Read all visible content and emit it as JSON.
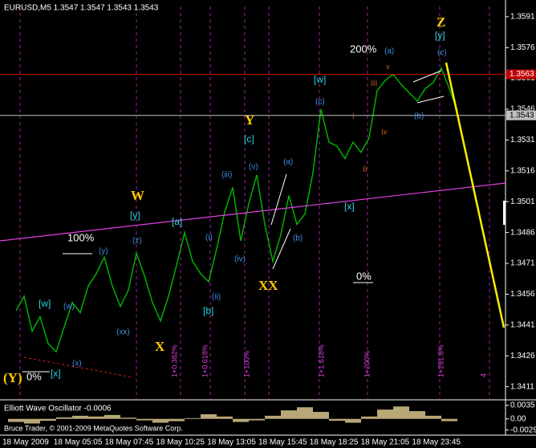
{
  "chart_data": [
    {
      "type": "line",
      "title": "EURUSD,M5  1.3547 1.3547 1.3543 1.3543",
      "series": [
        {
          "name": "EURUSD,M5",
          "color": "#00b000",
          "values": [
            1.3448,
            1.3455,
            1.3438,
            1.3445,
            1.3432,
            1.3428,
            1.344,
            1.3452,
            1.3447,
            1.346,
            1.3466,
            1.3474,
            1.346,
            1.345,
            1.3458,
            1.3476,
            1.3465,
            1.3452,
            1.3443,
            1.3455,
            1.347,
            1.3486,
            1.3472,
            1.3466,
            1.3462,
            1.3478,
            1.3496,
            1.3508,
            1.3482,
            1.35,
            1.3514,
            1.349,
            1.3472,
            1.3485,
            1.3504,
            1.349,
            1.3495,
            1.3515,
            1.3546,
            1.353,
            1.3528,
            1.3522,
            1.353,
            1.3525,
            1.3532,
            1.3555,
            1.356,
            1.3563,
            1.3558,
            1.3554,
            1.355,
            1.3556,
            1.3559,
            1.3566,
            1.3556,
            1.3545
          ]
        }
      ],
      "x_labels": [
        "18 May 2009",
        "18 May 05:05",
        "18 May 07:45",
        "18 May 10:25",
        "18 May 13:05",
        "18 May 15:45",
        "18 May 18:25",
        "18 May 21:05",
        "18 May 23:45"
      ],
      "ylim": [
        1.3405,
        1.3596
      ],
      "yticks": [
        1.3591,
        1.3576,
        1.3561,
        1.3546,
        1.3531,
        1.3516,
        1.3501,
        1.3486,
        1.3471,
        1.3456,
        1.3441,
        1.3426,
        1.3411
      ],
      "price_lines": [
        {
          "value": 1.3563,
          "color": "#c00000"
        },
        {
          "value": 1.3543,
          "color": "#c0c0c0"
        }
      ]
    },
    {
      "type": "bar",
      "title": "Elliott Wave Oscillator -0.0006",
      "color": "#b8a878",
      "values": [
        -0.0008,
        -0.0012,
        -0.0005,
        0.0004,
        0.0008,
        0.0006,
        0.001,
        0.0003,
        -0.0004,
        -0.001,
        -0.0006,
        0.0002,
        0.0012,
        0.0006,
        -0.0008,
        -0.0004,
        0.0008,
        0.0022,
        0.003,
        0.0018,
        -0.0005,
        -0.001,
        0.0006,
        0.0024,
        0.0032,
        0.002,
        0.0008,
        -0.0006
      ],
      "ylim": [
        -0.0038,
        0.0043
      ],
      "yticks": [
        0.0035,
        {
          "value": 0,
          "label": "0.00"
        },
        -0.0029
      ]
    }
  ],
  "annotations": [
    "(Y)",
    "0%",
    "[x]",
    "(x)",
    "[w]",
    "(w)",
    "(xx)",
    "(y)",
    "100%",
    "W",
    "[y]",
    "(z)",
    "X",
    "[a]",
    "(i)",
    "(ii)",
    "[b]",
    "(iii)",
    "(iv)",
    "(v)",
    "[c]",
    "Y",
    "XX",
    "(a)",
    "(b)",
    "[x]",
    "0%",
    "(c)",
    "[w]",
    "i",
    "ii",
    "iii",
    "iv",
    "v",
    "200%",
    "(a)",
    "(b)",
    "(c)",
    "[y]",
    "Z"
  ],
  "fib_labels": [
    "1+0.382%",
    "1+0.618%",
    "1+100%",
    "1+1.618%",
    "1+200%",
    "1+261.8%",
    "4"
  ],
  "footer": "Bruce Trader, © 2001-2009 MetaQuotes Software Corp."
}
